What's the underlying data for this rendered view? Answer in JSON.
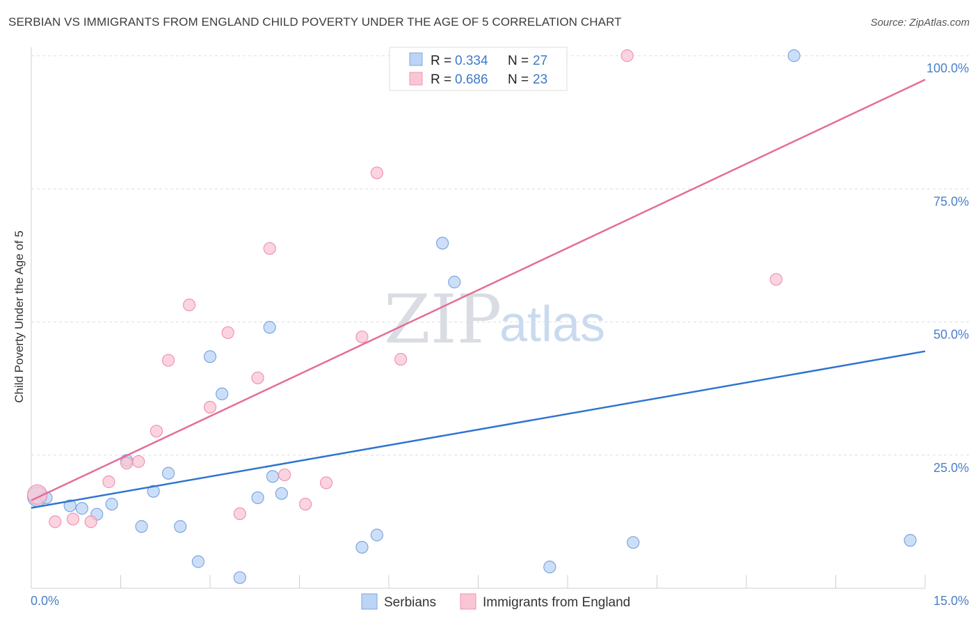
{
  "header": {
    "title": "SERBIAN VS IMMIGRANTS FROM ENGLAND CHILD POVERTY UNDER THE AGE OF 5 CORRELATION CHART",
    "source": "Source: ZipAtlas.com"
  },
  "watermark": {
    "zip": "ZIP",
    "atlas": "atlas"
  },
  "chart_data": {
    "type": "scatter",
    "title": "SERBIAN VS IMMIGRANTS FROM ENGLAND CHILD POVERTY UNDER THE AGE OF 5 CORRELATION CHART",
    "xlabel": "",
    "ylabel": "Child Poverty Under the Age of 5",
    "xlim": [
      0,
      15
    ],
    "ylim": [
      0,
      102
    ],
    "x_tick_labels": {
      "min": "0.0%",
      "max": "15.0%"
    },
    "y_ticks": [
      {
        "value": 25,
        "label": "25.0%"
      },
      {
        "value": 50,
        "label": "50.0%"
      },
      {
        "value": 75,
        "label": "75.0%"
      },
      {
        "value": 100,
        "label": "100.0%"
      }
    ],
    "legend_position": "top-center",
    "colors": {
      "serbians_fill": "#bcd4f5",
      "serbians_stroke": "#7aa6e0",
      "serbians_line": "#2f74d0",
      "england_fill": "#f9c6d5",
      "england_stroke": "#ee94b0",
      "england_line": "#e46d95"
    },
    "legend": [
      {
        "r_label": "R = ",
        "r_value": "0.334",
        "n_label": "N = ",
        "n_value": "27"
      },
      {
        "r_label": "R = ",
        "r_value": "0.686",
        "n_label": "N = ",
        "n_value": "23"
      }
    ],
    "series": [
      {
        "name": "Serbians",
        "trend": {
          "start": [
            0,
            15.1
          ],
          "end": [
            15,
            44.5
          ]
        },
        "points": [
          [
            0.1,
            17.2
          ],
          [
            0.65,
            15.5
          ],
          [
            0.85,
            15.0
          ],
          [
            1.1,
            13.9
          ],
          [
            1.35,
            15.8
          ],
          [
            1.6,
            24.0
          ],
          [
            1.85,
            11.6
          ],
          [
            2.05,
            18.2
          ],
          [
            2.3,
            21.6
          ],
          [
            2.5,
            11.6
          ],
          [
            2.8,
            5.0
          ],
          [
            3.0,
            43.5
          ],
          [
            3.2,
            36.5
          ],
          [
            3.5,
            2.0
          ],
          [
            3.8,
            17.0
          ],
          [
            4.0,
            49.0
          ],
          [
            4.2,
            17.8
          ],
          [
            4.05,
            21.0
          ],
          [
            5.55,
            7.7
          ],
          [
            5.8,
            10.0
          ],
          [
            6.9,
            64.8
          ],
          [
            7.1,
            57.5
          ],
          [
            8.7,
            4.0
          ],
          [
            10.1,
            8.6
          ],
          [
            12.8,
            100.0
          ],
          [
            14.75,
            9.0
          ],
          [
            0.25,
            17.0
          ]
        ]
      },
      {
        "name": "Immigrants from England",
        "trend": {
          "start": [
            0,
            16.5
          ],
          "end": [
            15,
            95.5
          ]
        },
        "points": [
          [
            0.1,
            17.6
          ],
          [
            0.4,
            12.5
          ],
          [
            0.7,
            13.0
          ],
          [
            1.0,
            12.5
          ],
          [
            1.3,
            20.0
          ],
          [
            1.6,
            23.5
          ],
          [
            1.8,
            23.8
          ],
          [
            2.1,
            29.5
          ],
          [
            2.3,
            42.8
          ],
          [
            2.65,
            53.2
          ],
          [
            3.0,
            34.0
          ],
          [
            3.3,
            48.0
          ],
          [
            3.5,
            14.0
          ],
          [
            3.8,
            39.5
          ],
          [
            4.0,
            63.8
          ],
          [
            4.25,
            21.3
          ],
          [
            4.6,
            15.8
          ],
          [
            4.95,
            19.8
          ],
          [
            5.55,
            47.2
          ],
          [
            5.8,
            78.0
          ],
          [
            6.2,
            43.0
          ],
          [
            10.0,
            100.0
          ],
          [
            12.5,
            58.0
          ]
        ]
      }
    ]
  }
}
